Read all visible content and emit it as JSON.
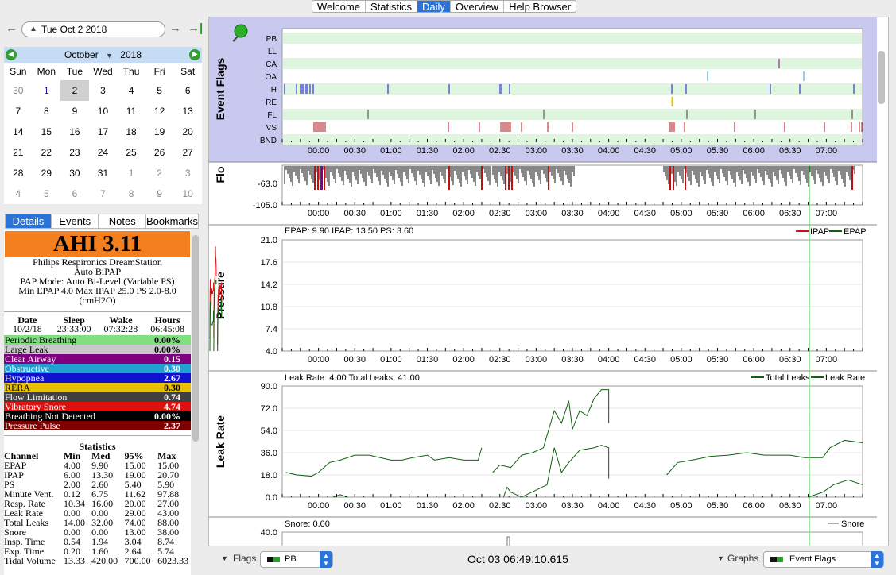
{
  "top_tabs": [
    {
      "label": "Welcome"
    },
    {
      "label": "Statistics"
    },
    {
      "label": "Daily",
      "active": true
    },
    {
      "label": "Overview"
    },
    {
      "label": "Help Browser"
    }
  ],
  "date_nav": {
    "date": "Tue Oct 2 2018"
  },
  "calendar": {
    "month": "October",
    "year": "2018",
    "days_of_week": [
      "Sun",
      "Mon",
      "Tue",
      "Wed",
      "Thu",
      "Fri",
      "Sat"
    ],
    "weeks": [
      [
        "30",
        "1",
        "2",
        "3",
        "4",
        "5",
        "6"
      ],
      [
        "7",
        "8",
        "9",
        "10",
        "11",
        "12",
        "13"
      ],
      [
        "14",
        "15",
        "16",
        "17",
        "18",
        "19",
        "20"
      ],
      [
        "21",
        "22",
        "23",
        "24",
        "25",
        "26",
        "27"
      ],
      [
        "28",
        "29",
        "30",
        "31",
        "1",
        "2",
        "3"
      ],
      [
        "4",
        "5",
        "6",
        "7",
        "8",
        "9",
        "10"
      ]
    ],
    "selected": "2"
  },
  "left_tabs": [
    {
      "label": "Details",
      "active": true
    },
    {
      "label": "Events"
    },
    {
      "label": "Notes"
    },
    {
      "label": "Bookmarks"
    }
  ],
  "details": {
    "ahi": "AHI 3.11",
    "device_lines": [
      "Philips Respironics DreamStation",
      "Auto BiPAP",
      "PAP Mode: Auto Bi-Level (Variable PS)",
      "Min EPAP 4.0 Max IPAP 25.0 PS 2.0-8.0",
      "(cmH2O)"
    ],
    "sleep_headers": [
      "Date",
      "Sleep",
      "Wake",
      "Hours"
    ],
    "sleep_values": [
      "10/2/18",
      "23:33:00",
      "07:32:28",
      "06:45:08"
    ],
    "events": [
      {
        "label": "Periodic Breathing",
        "value": "0.00%",
        "bg": "#80e080",
        "fg": "#000"
      },
      {
        "label": "Large Leak",
        "value": "0.00%",
        "bg": "#c8c8c8",
        "fg": "#000"
      },
      {
        "label": "Clear Airway",
        "value": "0.15",
        "bg": "#800080",
        "fg": "#fff"
      },
      {
        "label": "Obstructive",
        "value": "0.30",
        "bg": "#20a0d0",
        "fg": "#fff"
      },
      {
        "label": "Hypopnea",
        "value": "2.67",
        "bg": "#1010d0",
        "fg": "#fff"
      },
      {
        "label": "RERA",
        "value": "0.30",
        "bg": "#e8c000",
        "fg": "#000"
      },
      {
        "label": "Flow Limitation",
        "value": "0.74",
        "bg": "#404040",
        "fg": "#fff"
      },
      {
        "label": "Vibratory Snore",
        "value": "4.74",
        "bg": "#e01010",
        "fg": "#fff"
      },
      {
        "label": "Breathing Not Detected",
        "value": "0.00%",
        "bg": "#000000",
        "fg": "#fff"
      },
      {
        "label": "Pressure Pulse",
        "value": "2.37",
        "bg": "#800000",
        "fg": "#fff"
      }
    ],
    "statistics": {
      "title": "Statistics",
      "headers": [
        "Channel",
        "Min",
        "Med",
        "95%",
        "Max"
      ],
      "rows": [
        [
          "EPAP",
          "4.00",
          "9.90",
          "15.00",
          "15.00"
        ],
        [
          "IPAP",
          "6.00",
          "13.30",
          "19.00",
          "20.70"
        ],
        [
          "PS",
          "2.00",
          "2.60",
          "5.40",
          "5.90"
        ],
        [
          "Minute Vent.",
          "0.12",
          "6.75",
          "11.62",
          "97.88"
        ],
        [
          "Resp. Rate",
          "10.34",
          "16.00",
          "20.00",
          "27.00"
        ],
        [
          "Leak Rate",
          "0.00",
          "0.00",
          "29.00",
          "43.00"
        ],
        [
          "Total Leaks",
          "14.00",
          "32.00",
          "74.00",
          "88.00"
        ],
        [
          "Snore",
          "0.00",
          "0.00",
          "13.00",
          "38.00"
        ],
        [
          "Insp. Time",
          "0.54",
          "1.94",
          "3.04",
          "8.74"
        ],
        [
          "Exp. Time",
          "0.20",
          "1.60",
          "2.64",
          "5.74"
        ],
        [
          "Tidal Volume",
          "13.33",
          "420.00",
          "700.00",
          "6023.33"
        ]
      ]
    }
  },
  "time_ticks": [
    "00:00",
    "00:30",
    "01:00",
    "01:30",
    "02:00",
    "02:30",
    "03:00",
    "03:30",
    "04:00",
    "04:30",
    "05:00",
    "05:30",
    "06:00",
    "06:30",
    "07:00"
  ],
  "event_flags": {
    "title": "Event Flags",
    "rows": [
      "PB",
      "LL",
      "CA",
      "OA",
      "H",
      "RE",
      "FL",
      "VS",
      "BND"
    ],
    "colors": {
      "CA": "#800080",
      "OA": "#20a0d0",
      "H": "#1010d0",
      "RE": "#e8c000",
      "FL": "#404040",
      "VS": "#b01010"
    }
  },
  "flow_graph": {
    "title": "Flow",
    "ticks": [
      "-63.0",
      "-105.0"
    ]
  },
  "pressure_graph": {
    "title": "Pressure",
    "header": "EPAP: 9.90 IPAP: 13.50 PS: 3.60",
    "legend": [
      "IPAP",
      "EPAP"
    ],
    "yticks": [
      "21.0",
      "17.6",
      "14.2",
      "10.8",
      "7.4",
      "4.0"
    ]
  },
  "leak_graph": {
    "title": "Leak Rate",
    "header": "Leak Rate: 4.00 Total Leaks: 41.00",
    "legend": [
      "Total Leaks",
      "Leak Rate"
    ],
    "yticks": [
      "90.0",
      "72.0",
      "54.0",
      "36.0",
      "18.0",
      "0.0"
    ]
  },
  "snore_graph": {
    "header": "Snore: 0.00",
    "legend": "Snore",
    "ytick": "40.0"
  },
  "bottom": {
    "flags_label": "Flags",
    "flags_select": "PB",
    "timestamp": "Oct 03 06:49:10.615",
    "graphs_label": "Graphs",
    "graphs_select": "Event Flags"
  },
  "colors": {
    "ipap": "#d01010",
    "epap": "#106010",
    "total_leak": "#106010",
    "cursor": "#40d040",
    "accent": "#2b73d8"
  }
}
